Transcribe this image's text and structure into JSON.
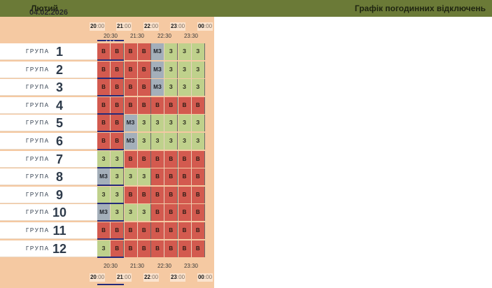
{
  "header": {
    "month": "Лютий",
    "title": "Графік погодинних відключень"
  },
  "date": "04.02.2026",
  "hours": [
    {
      "h": "20",
      "m": ":00"
    },
    {
      "h": "21",
      "m": ":00"
    },
    {
      "h": "22",
      "m": ":00"
    },
    {
      "h": "23",
      "m": ":00"
    },
    {
      "h": "00",
      "m": ":00"
    }
  ],
  "half_hours": [
    "20:30",
    "21:30",
    "22:30",
    "23:30"
  ],
  "now_marker": "• • •",
  "group_word": "ГРУПА",
  "legend_colors": {
    "В": "#d35a4f",
    "З": "#bfd18c",
    "МЗ": "#a4afba"
  },
  "groups": [
    {
      "num": "1",
      "slots": [
        "В",
        "В",
        "В",
        "В",
        "МЗ",
        "З",
        "З",
        "З"
      ]
    },
    {
      "num": "2",
      "slots": [
        "В",
        "В",
        "В",
        "В",
        "МЗ",
        "З",
        "З",
        "З"
      ]
    },
    {
      "num": "3",
      "slots": [
        "В",
        "В",
        "В",
        "В",
        "МЗ",
        "З",
        "З",
        "З"
      ]
    },
    {
      "num": "4",
      "slots": [
        "В",
        "В",
        "В",
        "В",
        "В",
        "В",
        "В",
        "В"
      ]
    },
    {
      "num": "5",
      "slots": [
        "В",
        "В",
        "МЗ",
        "З",
        "З",
        "З",
        "З",
        "З"
      ]
    },
    {
      "num": "6",
      "slots": [
        "В",
        "В",
        "МЗ",
        "З",
        "З",
        "З",
        "З",
        "З"
      ]
    },
    {
      "num": "7",
      "slots": [
        "З",
        "З",
        "В",
        "В",
        "В",
        "В",
        "В",
        "В"
      ]
    },
    {
      "num": "8",
      "slots": [
        "МЗ",
        "З",
        "З",
        "З",
        "В",
        "В",
        "В",
        "В"
      ]
    },
    {
      "num": "9",
      "slots": [
        "З",
        "З",
        "В",
        "В",
        "В",
        "В",
        "В",
        "В"
      ]
    },
    {
      "num": "10",
      "slots": [
        "МЗ",
        "З",
        "З",
        "З",
        "В",
        "В",
        "В",
        "В"
      ]
    },
    {
      "num": "11",
      "slots": [
        "В",
        "В",
        "В",
        "В",
        "В",
        "В",
        "В",
        "В"
      ]
    },
    {
      "num": "12",
      "slots": [
        "З",
        "В",
        "В",
        "В",
        "В",
        "В",
        "В",
        "В"
      ]
    }
  ]
}
